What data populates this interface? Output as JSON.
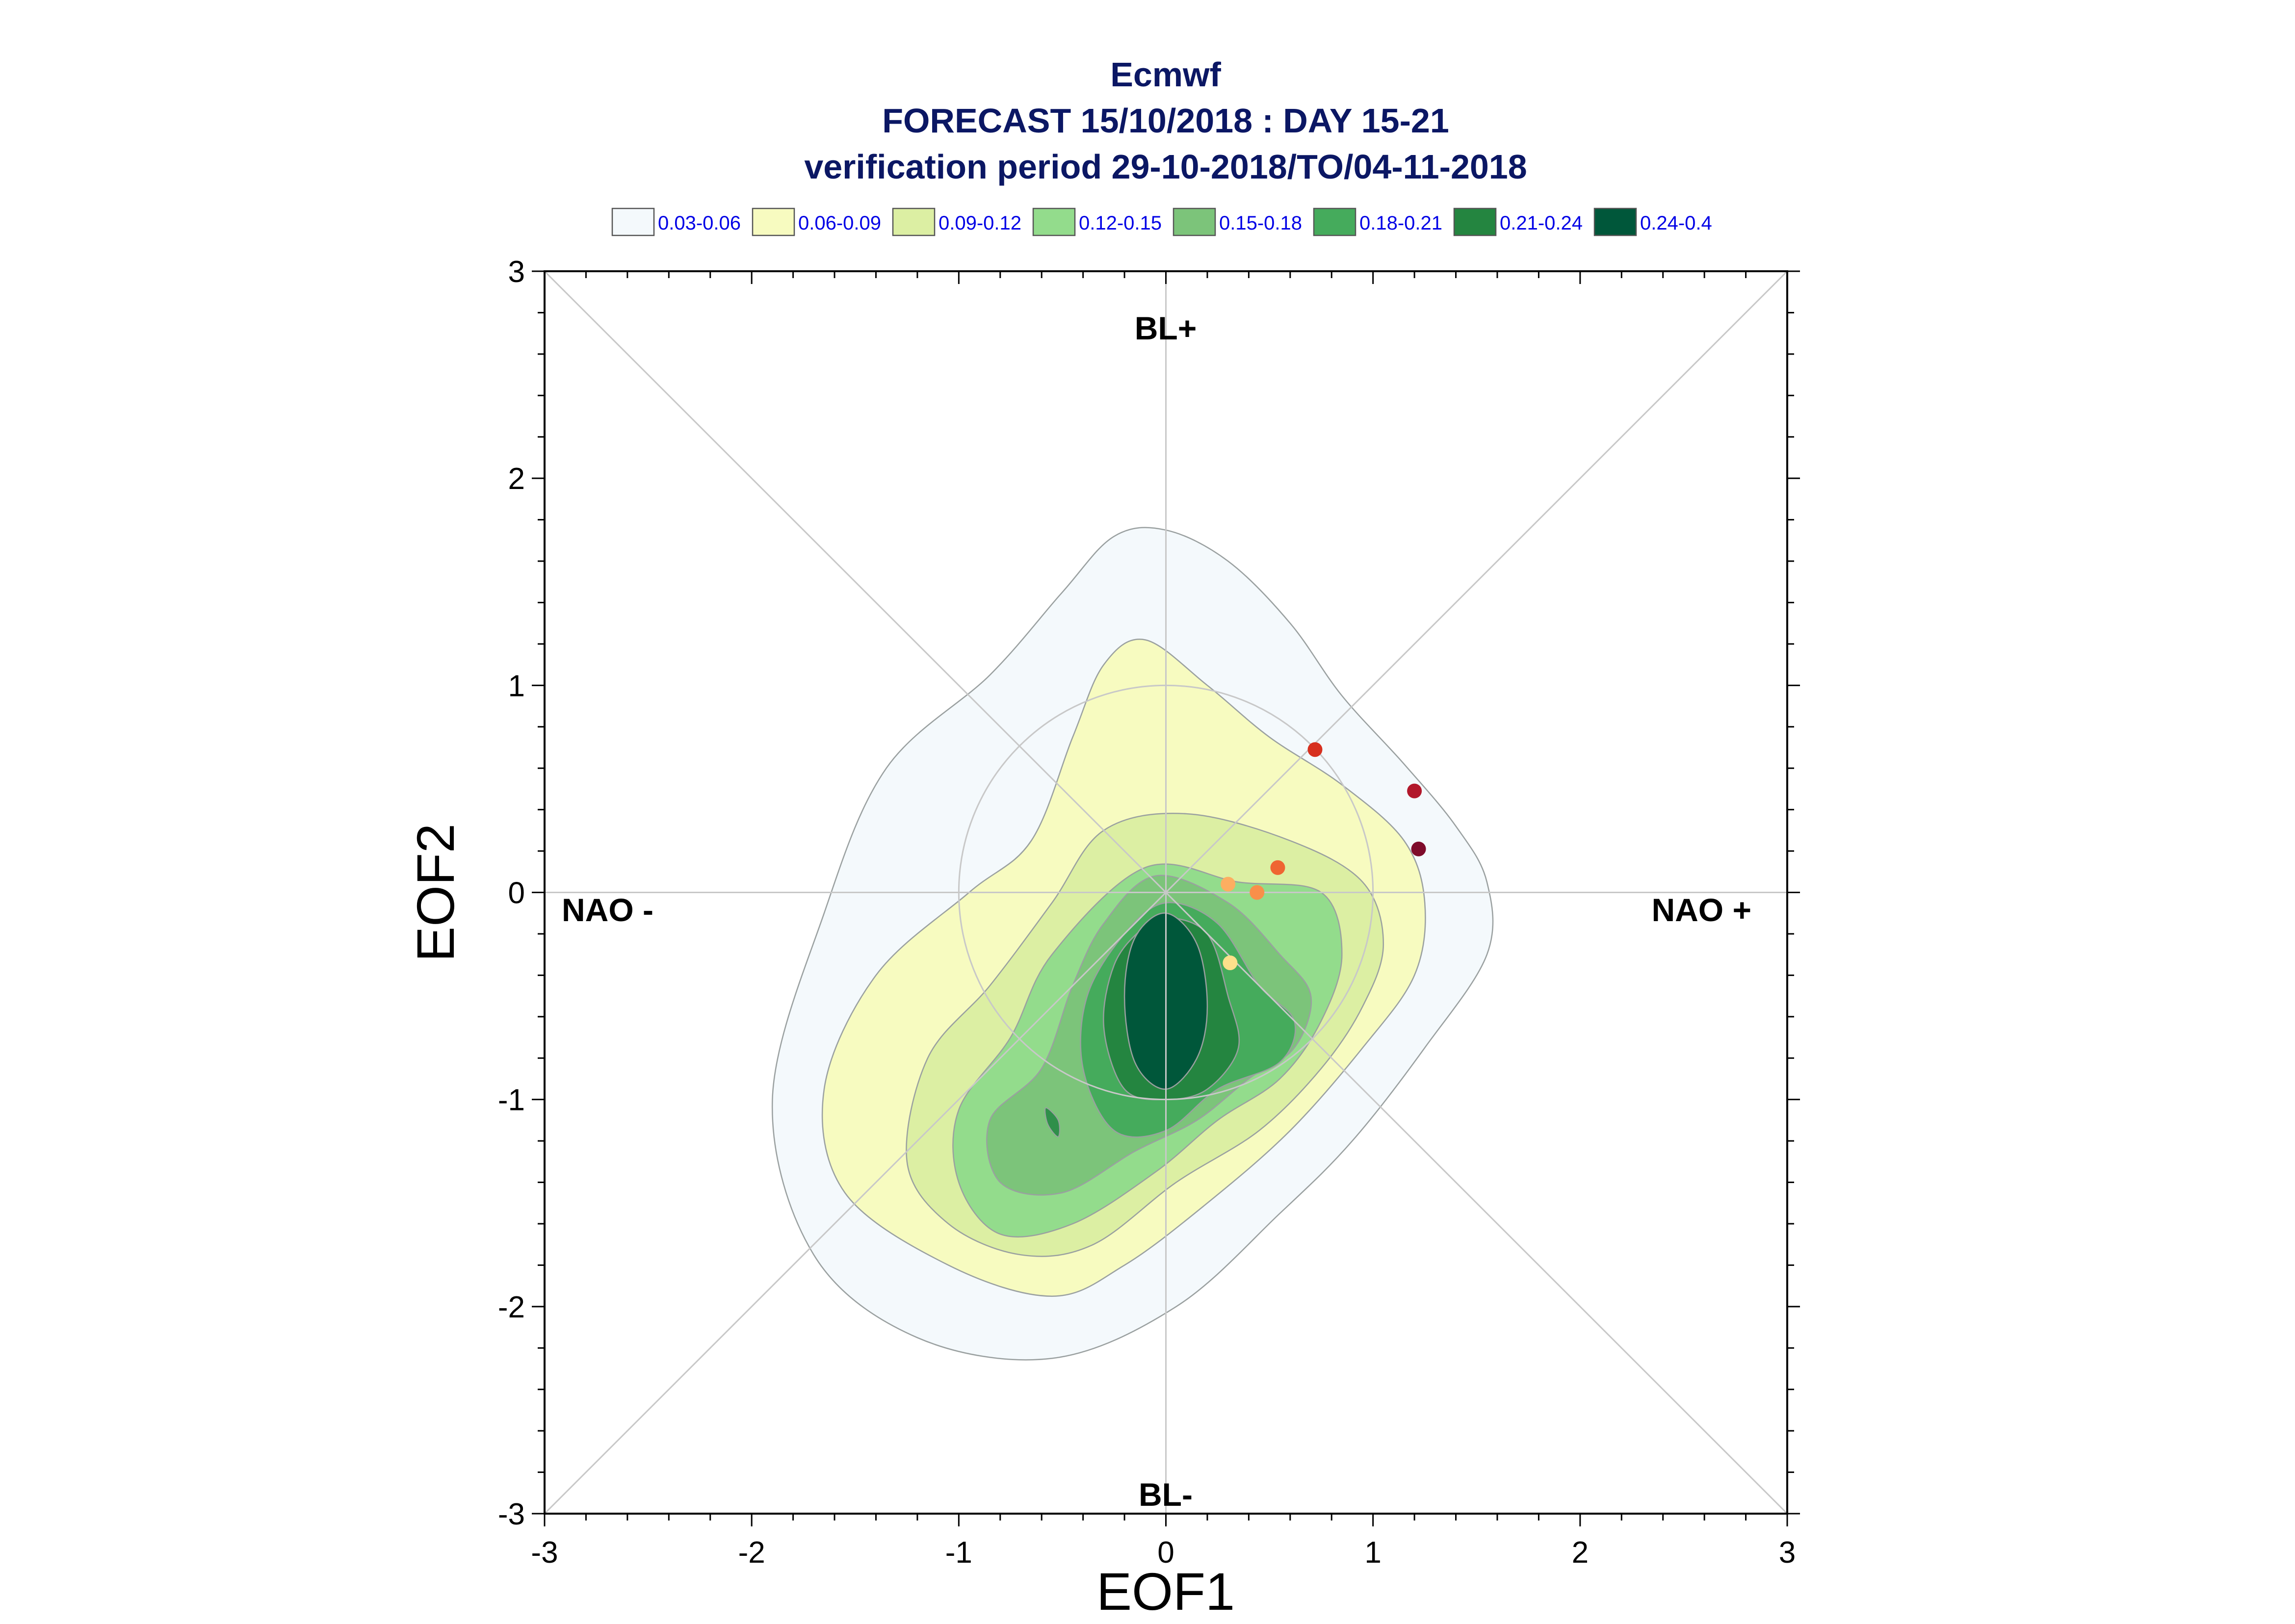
{
  "chart_data": {
    "type": "contour-scatter",
    "title_lines": [
      "Ecmwf",
      "FORECAST 15/10/2018 : DAY 15-21",
      "verification period 29-10-2018/TO/04-11-2018"
    ],
    "xlabel": "EOF1",
    "ylabel": "EOF2",
    "xlim": [
      -3,
      3
    ],
    "ylim": [
      -3,
      3
    ],
    "x_ticks": [
      "-3",
      "-2",
      "-1",
      "0",
      "1",
      "2",
      "3"
    ],
    "y_ticks": [
      "-3",
      "-2",
      "-1",
      "0",
      "1",
      "2",
      "3"
    ],
    "regime_labels": {
      "top": "BL+",
      "bottom": "BL-",
      "left": "NAO -",
      "right": "NAO +"
    },
    "legend": [
      {
        "label": "0.03-0.06",
        "color": "#f4f9fc"
      },
      {
        "label": "0.06-0.09",
        "color": "#f7fbc0"
      },
      {
        "label": "0.09-0.12",
        "color": "#dcefa3"
      },
      {
        "label": "0.12-0.15",
        "color": "#93dc8c"
      },
      {
        "label": "0.15-0.18",
        "color": "#7cc47a"
      },
      {
        "label": "0.18-0.21",
        "color": "#45ab5c"
      },
      {
        "label": "0.21-0.24",
        "color": "#248540"
      },
      {
        "label": "0.24-0.4",
        "color": "#00573a"
      }
    ],
    "grid": {
      "axes_cross": true,
      "diagonals": true,
      "unit_circle": true
    },
    "contours": [
      {
        "level": "0.03-0.06",
        "points": [
          [
            0.0,
            1.75
          ],
          [
            0.3,
            1.6
          ],
          [
            0.6,
            1.3
          ],
          [
            0.85,
            0.95
          ],
          [
            1.15,
            0.62
          ],
          [
            1.4,
            0.32
          ],
          [
            1.55,
            0.05
          ],
          [
            1.55,
            -0.3
          ],
          [
            1.25,
            -0.75
          ],
          [
            0.9,
            -1.2
          ],
          [
            0.55,
            -1.55
          ],
          [
            0.05,
            -2.0
          ],
          [
            -0.55,
            -2.25
          ],
          [
            -1.2,
            -2.15
          ],
          [
            -1.7,
            -1.75
          ],
          [
            -1.9,
            -1.0
          ],
          [
            -1.65,
            -0.1
          ],
          [
            -1.35,
            0.6
          ],
          [
            -0.85,
            1.05
          ],
          [
            -0.5,
            1.45
          ],
          [
            -0.25,
            1.72
          ]
        ]
      },
      {
        "level": "0.06-0.09",
        "points": [
          [
            -0.1,
            1.22
          ],
          [
            0.2,
            1.0
          ],
          [
            0.5,
            0.75
          ],
          [
            0.85,
            0.52
          ],
          [
            1.15,
            0.25
          ],
          [
            1.25,
            -0.05
          ],
          [
            1.2,
            -0.4
          ],
          [
            0.95,
            -0.75
          ],
          [
            0.6,
            -1.15
          ],
          [
            0.2,
            -1.5
          ],
          [
            -0.2,
            -1.8
          ],
          [
            -0.55,
            -1.95
          ],
          [
            -1.05,
            -1.8
          ],
          [
            -1.55,
            -1.45
          ],
          [
            -1.65,
            -0.95
          ],
          [
            -1.4,
            -0.4
          ],
          [
            -0.95,
            0.0
          ],
          [
            -0.65,
            0.25
          ],
          [
            -0.45,
            0.75
          ],
          [
            -0.3,
            1.1
          ]
        ]
      },
      {
        "level": "0.09-0.12",
        "points": [
          [
            -0.3,
            0.3
          ],
          [
            0.1,
            0.38
          ],
          [
            0.6,
            0.25
          ],
          [
            0.95,
            0.05
          ],
          [
            1.05,
            -0.25
          ],
          [
            0.95,
            -0.55
          ],
          [
            0.75,
            -0.85
          ],
          [
            0.45,
            -1.15
          ],
          [
            0.05,
            -1.4
          ],
          [
            -0.35,
            -1.7
          ],
          [
            -0.7,
            -1.75
          ],
          [
            -1.05,
            -1.6
          ],
          [
            -1.25,
            -1.3
          ],
          [
            -1.15,
            -0.8
          ],
          [
            -0.85,
            -0.45
          ],
          [
            -0.55,
            -0.05
          ]
        ]
      },
      {
        "level": "0.12-0.15",
        "points": [
          [
            -0.1,
            0.12
          ],
          [
            0.35,
            0.05
          ],
          [
            0.75,
            0.0
          ],
          [
            0.85,
            -0.3
          ],
          [
            0.75,
            -0.62
          ],
          [
            0.55,
            -0.9
          ],
          [
            0.25,
            -1.1
          ],
          [
            -0.05,
            -1.35
          ],
          [
            -0.45,
            -1.6
          ],
          [
            -0.8,
            -1.65
          ],
          [
            -1.0,
            -1.4
          ],
          [
            -1.0,
            -1.05
          ],
          [
            -0.75,
            -0.7
          ],
          [
            -0.55,
            -0.3
          ]
        ]
      },
      {
        "level": "0.15-0.18",
        "points": [
          [
            -0.05,
            0.08
          ],
          [
            0.3,
            -0.05
          ],
          [
            0.55,
            -0.3
          ],
          [
            0.7,
            -0.5
          ],
          [
            0.62,
            -0.75
          ],
          [
            0.4,
            -0.9
          ],
          [
            0.15,
            -1.1
          ],
          [
            -0.15,
            -1.25
          ],
          [
            -0.5,
            -1.45
          ],
          [
            -0.8,
            -1.4
          ],
          [
            -0.85,
            -1.1
          ],
          [
            -0.6,
            -0.85
          ],
          [
            -0.45,
            -0.45
          ],
          [
            -0.3,
            -0.15
          ]
        ]
      },
      {
        "level": "0.18-0.21",
        "points": [
          [
            0.0,
            -0.05
          ],
          [
            0.25,
            -0.15
          ],
          [
            0.45,
            -0.45
          ],
          [
            0.62,
            -0.62
          ],
          [
            0.55,
            -0.82
          ],
          [
            0.25,
            -0.95
          ],
          [
            0.0,
            -1.15
          ],
          [
            -0.25,
            -1.15
          ],
          [
            -0.4,
            -0.85
          ],
          [
            -0.38,
            -0.5
          ],
          [
            -0.2,
            -0.2
          ]
        ]
      },
      {
        "level": "0.21-0.24",
        "points": [
          [
            0.0,
            -0.12
          ],
          [
            0.2,
            -0.2
          ],
          [
            0.3,
            -0.5
          ],
          [
            0.35,
            -0.75
          ],
          [
            0.2,
            -0.95
          ],
          [
            0.0,
            -1.0
          ],
          [
            -0.2,
            -0.95
          ],
          [
            -0.3,
            -0.65
          ],
          [
            -0.25,
            -0.35
          ],
          [
            -0.12,
            -0.18
          ]
        ]
      },
      {
        "level": "0.24-0.4",
        "points": [
          [
            0.0,
            -0.1
          ],
          [
            0.15,
            -0.25
          ],
          [
            0.2,
            -0.55
          ],
          [
            0.15,
            -0.8
          ],
          [
            0.0,
            -0.95
          ],
          [
            -0.15,
            -0.82
          ],
          [
            -0.2,
            -0.5
          ],
          [
            -0.15,
            -0.22
          ]
        ]
      }
    ],
    "small_blobs": [
      {
        "level": "0.15-0.18",
        "points": [
          [
            -0.58,
            -1.04
          ],
          [
            -0.52,
            -1.1
          ],
          [
            -0.52,
            -1.18
          ],
          [
            -0.57,
            -1.12
          ]
        ]
      }
    ],
    "points": [
      {
        "x": 0.72,
        "y": 0.69,
        "color": "#d7301f"
      },
      {
        "x": 1.2,
        "y": 0.49,
        "color": "#b2182b"
      },
      {
        "x": 1.22,
        "y": 0.21,
        "color": "#7f0c2b"
      },
      {
        "x": 0.54,
        "y": 0.12,
        "color": "#ef6532"
      },
      {
        "x": 0.3,
        "y": 0.04,
        "color": "#fdae61"
      },
      {
        "x": 0.44,
        "y": 0.0,
        "color": "#f98f4a"
      },
      {
        "x": 0.31,
        "y": -0.34,
        "color": "#fee08b"
      }
    ]
  }
}
